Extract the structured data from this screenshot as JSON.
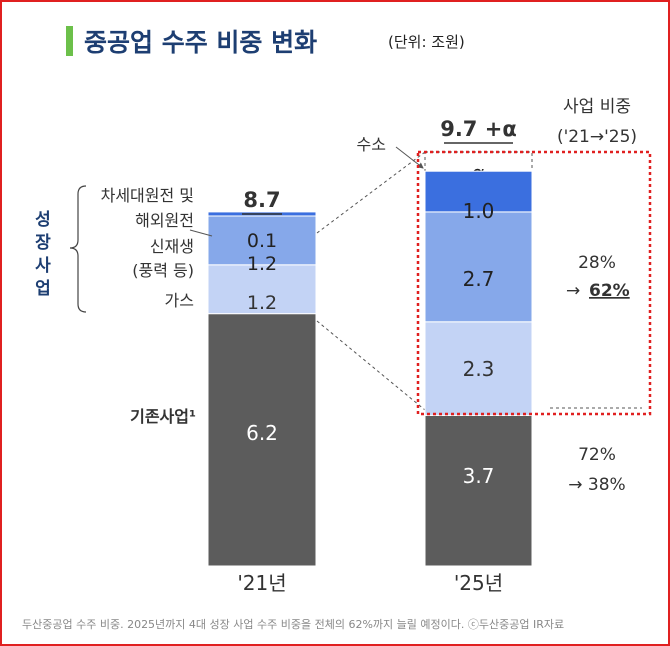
{
  "title": "중공업 수주 비중 변화",
  "unit": "(단위: 조원)",
  "caption": "두산중공업 수주 비중. 2025년까지 4대 성장 사업 수주 비중을 전체의 62%까지 늘릴 예정이다. ⓒ두산중공업 IR자료",
  "colors": {
    "title": "#1d3e72",
    "accent_bar": "#6cc04a",
    "existing": "#5c5c5c",
    "gas": "#c3d3f5",
    "renewable": "#86a8ea",
    "nuclear": "#3b6fdf",
    "highlight": "#e02020"
  },
  "annotations": {
    "growth_business": [
      "성",
      "장",
      "사",
      "업"
    ],
    "existing_business": "기존사업¹",
    "nuclear_label_1": "차세대원전 및",
    "nuclear_label_2": "해외원전",
    "renewable_label_1": "신재생",
    "renewable_label_2": "(풍력 등)",
    "gas_label": "가스",
    "hydrogen_label": "수소",
    "share_header_1": "사업 비중",
    "share_header_2": "('21→'25)",
    "growth_share_from": "28%",
    "growth_share_arrow": "→",
    "growth_share_to": "62%",
    "existing_share_from": "72%",
    "existing_share_to": "→ 38%"
  },
  "chart_data": {
    "type": "bar",
    "stacked": true,
    "title": "중공업 수주 비중 변화",
    "unit": "조원",
    "categories": [
      "'21년",
      "'25년"
    ],
    "totals": [
      "8.7",
      "9.7 +α"
    ],
    "series": [
      {
        "name": "기존사업",
        "values": [
          6.2,
          3.7
        ],
        "labels": [
          "6.2",
          "3.7"
        ]
      },
      {
        "name": "가스",
        "values": [
          1.2,
          2.3
        ],
        "labels": [
          "1.2",
          "2.3"
        ]
      },
      {
        "name": "신재생",
        "values": [
          1.2,
          2.7
        ],
        "labels": [
          "1.2",
          "2.7"
        ]
      },
      {
        "name": "차세대원전 및 해외원전",
        "values": [
          0.1,
          1.0
        ],
        "labels": [
          "0.1",
          "1.0"
        ]
      },
      {
        "name": "수소",
        "values": [
          null,
          null
        ],
        "labels": [
          "",
          "α"
        ]
      }
    ]
  }
}
